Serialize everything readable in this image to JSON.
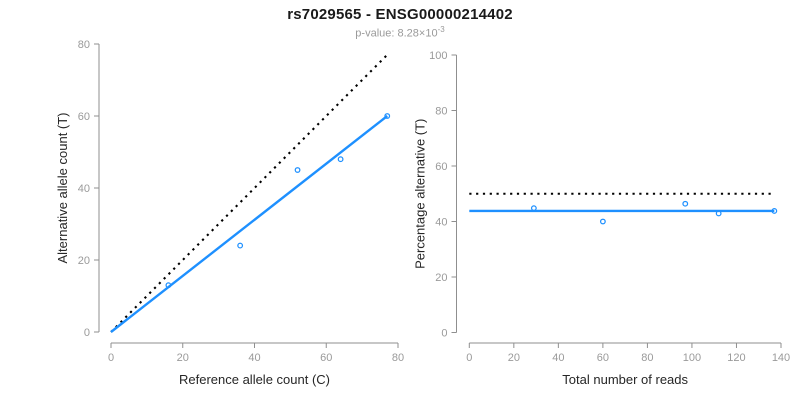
{
  "figure": {
    "title": "rs7029565 - ENSG00000214402",
    "subtitle_prefix": "p-value: 8.28×10",
    "subtitle_exponent": "-3"
  },
  "colors": {
    "accent_blue": "#1E90FF",
    "identity_black": "#000000",
    "axis_gray": "#8f8f8f",
    "tick_label_gray": "#9a9a9a"
  },
  "chart_data": [
    {
      "type": "scatter",
      "name": "ref-vs-alt-counts",
      "xlabel": "Reference allele count (C)",
      "ylabel": "Alternative allele count (T)",
      "xlim": [
        0,
        80
      ],
      "ylim": [
        0,
        80
      ],
      "xticks": [
        0,
        20,
        40,
        60,
        80
      ],
      "yticks": [
        0,
        20,
        40,
        60,
        80
      ],
      "grid": false,
      "legend": "none",
      "points": [
        [
          16,
          13
        ],
        [
          36,
          24
        ],
        [
          52,
          45
        ],
        [
          64,
          48
        ],
        [
          77,
          60
        ]
      ],
      "point_color": "#1E90FF",
      "lines": [
        {
          "name": "identity-line",
          "style": "dotted",
          "color": "#000000",
          "from": [
            0,
            0
          ],
          "to": [
            77,
            77
          ]
        },
        {
          "name": "fit-line",
          "style": "solid",
          "color": "#1E90FF",
          "from": [
            0,
            0
          ],
          "to": [
            77,
            60
          ]
        }
      ]
    },
    {
      "type": "scatter",
      "name": "reads-vs-percentage",
      "xlabel": "Total number of reads",
      "ylabel": "Percentage alternative (T)",
      "xlim": [
        0,
        140
      ],
      "ylim": [
        0,
        100
      ],
      "xticks": [
        0,
        20,
        40,
        60,
        80,
        100,
        120,
        140
      ],
      "yticks": [
        0,
        20,
        40,
        60,
        80,
        100
      ],
      "grid": false,
      "legend": "none",
      "points": [
        [
          29,
          44.8
        ],
        [
          60,
          40
        ],
        [
          97,
          46.4
        ],
        [
          112,
          42.9
        ],
        [
          137,
          43.8
        ]
      ],
      "point_color": "#1E90FF",
      "lines": [
        {
          "name": "expected-50-line",
          "style": "dotted",
          "color": "#000000",
          "from": [
            0,
            50
          ],
          "to": [
            137,
            50
          ]
        },
        {
          "name": "mean-percentage-line",
          "style": "solid",
          "color": "#1E90FF",
          "from": [
            0,
            43.8
          ],
          "to": [
            137,
            43.8
          ]
        }
      ]
    }
  ]
}
